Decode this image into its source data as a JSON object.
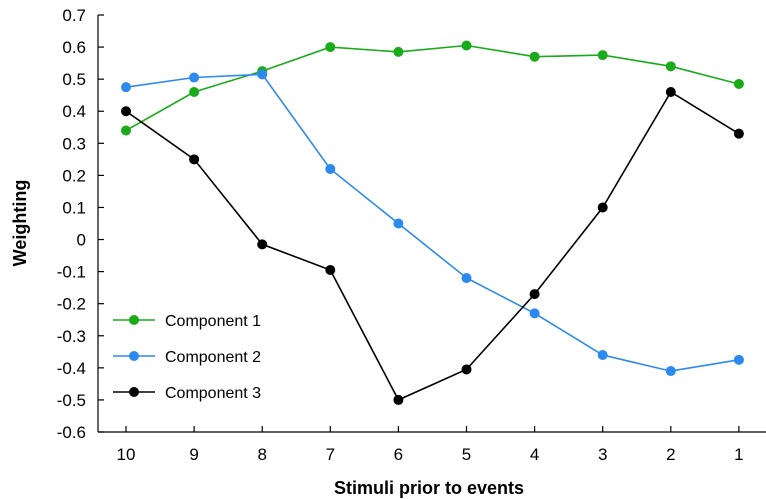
{
  "chart_data": {
    "type": "line",
    "xlabel": "Stimuli prior to events",
    "ylabel": "Weighting",
    "categories": [
      "10",
      "9",
      "8",
      "7",
      "6",
      "5",
      "4",
      "3",
      "2",
      "1"
    ],
    "ylim": [
      -0.6,
      0.7
    ],
    "yticks": [
      "-0.6",
      "-0.5",
      "-0.4",
      "-0.3",
      "-0.2",
      "-0.1",
      "0",
      "0.1",
      "0.2",
      "0.3",
      "0.4",
      "0.5",
      "0.6",
      "0.7"
    ],
    "grid": false,
    "legend_position": "bottom-left",
    "series": [
      {
        "name": "Component 1",
        "color": "#1aab1a",
        "values": [
          0.34,
          0.46,
          0.525,
          0.6,
          0.585,
          0.605,
          0.57,
          0.575,
          0.54,
          0.485
        ]
      },
      {
        "name": "Component 2",
        "color": "#2c89ee",
        "values": [
          0.475,
          0.505,
          0.515,
          0.22,
          0.05,
          -0.12,
          -0.23,
          -0.36,
          -0.41,
          -0.375
        ]
      },
      {
        "name": "Component 3",
        "color": "#000000",
        "values": [
          0.4,
          0.25,
          -0.015,
          -0.095,
          -0.5,
          -0.405,
          -0.17,
          0.1,
          0.46,
          0.33
        ]
      }
    ]
  }
}
